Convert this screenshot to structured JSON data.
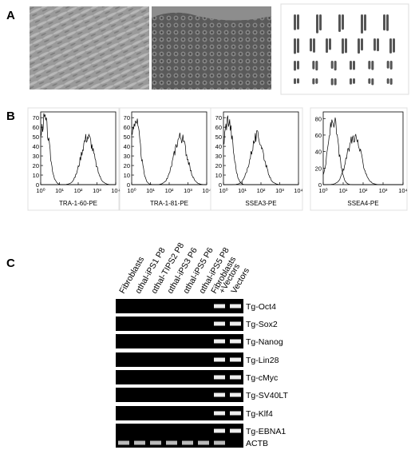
{
  "panel_a": {
    "label": "A"
  },
  "panel_b": {
    "label": "B",
    "xticks": [
      {
        "value": 1,
        "label": "10⁰"
      },
      {
        "value": 10,
        "label": "10¹"
      },
      {
        "value": 100,
        "label": "10²"
      },
      {
        "value": 1000,
        "label": "10³"
      },
      {
        "value": 10000,
        "label": "10⁴"
      }
    ],
    "xlim": [
      1,
      10000
    ],
    "histograms": [
      {
        "xlabel": "TRA-1-60-PE",
        "ylim": [
          0,
          76
        ],
        "yticks": [
          0,
          10,
          20,
          30,
          40,
          50,
          60,
          70
        ]
      },
      {
        "xlabel": "TRA-1-81-PE",
        "ylim": [
          0,
          76
        ],
        "yticks": [
          0,
          10,
          20,
          30,
          40,
          50,
          60,
          70
        ]
      },
      {
        "xlabel": "SSEA3-PE",
        "ylim": [
          0,
          76
        ],
        "yticks": [
          0,
          10,
          20,
          30,
          40,
          50,
          60,
          70
        ]
      },
      {
        "xlabel": "SSEA4-PE",
        "ylim": [
          0,
          88
        ],
        "yticks": [
          0,
          20,
          40,
          60,
          80
        ]
      }
    ]
  },
  "panel_c": {
    "label": "C",
    "lanes": [
      "Fibroblasts",
      "αthal-iPS1 P8",
      "αthal-TIPS2 P8",
      "αthal-iPS3 P6",
      "αthal-iPS5 P6",
      "αthal-iPS5 P8",
      [
        "Fibroblasts",
        "+Vectors"
      ],
      "Vectors"
    ],
    "rows": [
      "Tg-Oct4",
      "Tg-Sox2",
      "Tg-Nanog",
      "Tg-Lin28",
      "Tg-cMyc",
      "Tg-SV40LT",
      "Tg-Klf4",
      "Tg-EBNA1",
      "ACTB"
    ]
  }
}
